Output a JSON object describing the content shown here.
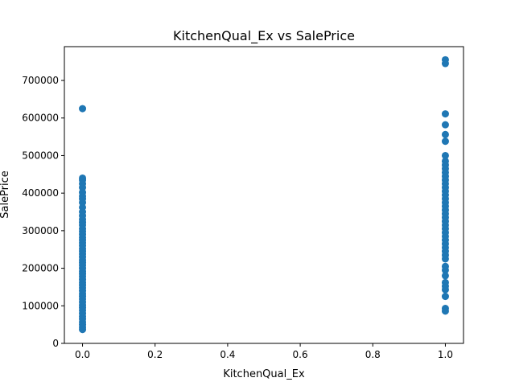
{
  "chart_data": {
    "type": "scatter",
    "title": "KitchenQual_Ex vs SalePrice",
    "xlabel": "KitchenQual_Ex",
    "ylabel": "SalePrice",
    "xlim": [
      -0.05,
      1.05
    ],
    "ylim": [
      0,
      790000
    ],
    "xticks": [
      0.0,
      0.2,
      0.4,
      0.6,
      0.8,
      1.0
    ],
    "xtick_labels": [
      "0.0",
      "0.2",
      "0.4",
      "0.6",
      "0.8",
      "1.0"
    ],
    "yticks": [
      0,
      100000,
      200000,
      300000,
      400000,
      500000,
      600000,
      700000
    ],
    "ytick_labels": [
      "0",
      "100000",
      "200000",
      "300000",
      "400000",
      "500000",
      "600000",
      "700000"
    ],
    "grid": false,
    "marker_color": "#1f77b4",
    "points": [
      {
        "x": 0,
        "y": 625000
      },
      {
        "x": 0,
        "y": 440000
      },
      {
        "x": 0,
        "y": 435000
      },
      {
        "x": 0,
        "y": 425000
      },
      {
        "x": 0,
        "y": 415000
      },
      {
        "x": 0,
        "y": 402000
      },
      {
        "x": 0,
        "y": 392000
      },
      {
        "x": 0,
        "y": 385000
      },
      {
        "x": 0,
        "y": 375000
      },
      {
        "x": 0,
        "y": 362000
      },
      {
        "x": 0,
        "y": 350000
      },
      {
        "x": 0,
        "y": 340000
      },
      {
        "x": 0,
        "y": 330000
      },
      {
        "x": 0,
        "y": 322000
      },
      {
        "x": 0,
        "y": 315000
      },
      {
        "x": 0,
        "y": 305000
      },
      {
        "x": 0,
        "y": 298000
      },
      {
        "x": 0,
        "y": 290000
      },
      {
        "x": 0,
        "y": 282000
      },
      {
        "x": 0,
        "y": 275000
      },
      {
        "x": 0,
        "y": 268000
      },
      {
        "x": 0,
        "y": 260000
      },
      {
        "x": 0,
        "y": 252000
      },
      {
        "x": 0,
        "y": 245000
      },
      {
        "x": 0,
        "y": 238000
      },
      {
        "x": 0,
        "y": 230000
      },
      {
        "x": 0,
        "y": 222000
      },
      {
        "x": 0,
        "y": 215000
      },
      {
        "x": 0,
        "y": 208000
      },
      {
        "x": 0,
        "y": 200000
      },
      {
        "x": 0,
        "y": 192000
      },
      {
        "x": 0,
        "y": 185000
      },
      {
        "x": 0,
        "y": 178000
      },
      {
        "x": 0,
        "y": 170000
      },
      {
        "x": 0,
        "y": 162000
      },
      {
        "x": 0,
        "y": 155000
      },
      {
        "x": 0,
        "y": 148000
      },
      {
        "x": 0,
        "y": 140000
      },
      {
        "x": 0,
        "y": 132000
      },
      {
        "x": 0,
        "y": 125000
      },
      {
        "x": 0,
        "y": 118000
      },
      {
        "x": 0,
        "y": 110000
      },
      {
        "x": 0,
        "y": 102000
      },
      {
        "x": 0,
        "y": 95000
      },
      {
        "x": 0,
        "y": 88000
      },
      {
        "x": 0,
        "y": 80000
      },
      {
        "x": 0,
        "y": 72000
      },
      {
        "x": 0,
        "y": 65000
      },
      {
        "x": 0,
        "y": 57000
      },
      {
        "x": 0,
        "y": 50000
      },
      {
        "x": 0,
        "y": 43000
      },
      {
        "x": 0,
        "y": 37000
      },
      {
        "x": 1,
        "y": 755000
      },
      {
        "x": 1,
        "y": 745000
      },
      {
        "x": 1,
        "y": 611000
      },
      {
        "x": 1,
        "y": 582000
      },
      {
        "x": 1,
        "y": 556000
      },
      {
        "x": 1,
        "y": 538000
      },
      {
        "x": 1,
        "y": 500000
      },
      {
        "x": 1,
        "y": 485000
      },
      {
        "x": 1,
        "y": 475000
      },
      {
        "x": 1,
        "y": 465000
      },
      {
        "x": 1,
        "y": 455000
      },
      {
        "x": 1,
        "y": 445000
      },
      {
        "x": 1,
        "y": 435000
      },
      {
        "x": 1,
        "y": 425000
      },
      {
        "x": 1,
        "y": 415000
      },
      {
        "x": 1,
        "y": 405000
      },
      {
        "x": 1,
        "y": 395000
      },
      {
        "x": 1,
        "y": 385000
      },
      {
        "x": 1,
        "y": 375000
      },
      {
        "x": 1,
        "y": 365000
      },
      {
        "x": 1,
        "y": 355000
      },
      {
        "x": 1,
        "y": 345000
      },
      {
        "x": 1,
        "y": 335000
      },
      {
        "x": 1,
        "y": 325000
      },
      {
        "x": 1,
        "y": 315000
      },
      {
        "x": 1,
        "y": 305000
      },
      {
        "x": 1,
        "y": 295000
      },
      {
        "x": 1,
        "y": 285000
      },
      {
        "x": 1,
        "y": 275000
      },
      {
        "x": 1,
        "y": 265000
      },
      {
        "x": 1,
        "y": 255000
      },
      {
        "x": 1,
        "y": 245000
      },
      {
        "x": 1,
        "y": 235000
      },
      {
        "x": 1,
        "y": 225000
      },
      {
        "x": 1,
        "y": 205000
      },
      {
        "x": 1,
        "y": 195000
      },
      {
        "x": 1,
        "y": 180000
      },
      {
        "x": 1,
        "y": 162000
      },
      {
        "x": 1,
        "y": 152000
      },
      {
        "x": 1,
        "y": 143000
      },
      {
        "x": 1,
        "y": 125000
      },
      {
        "x": 1,
        "y": 93000
      },
      {
        "x": 1,
        "y": 86000
      }
    ]
  }
}
